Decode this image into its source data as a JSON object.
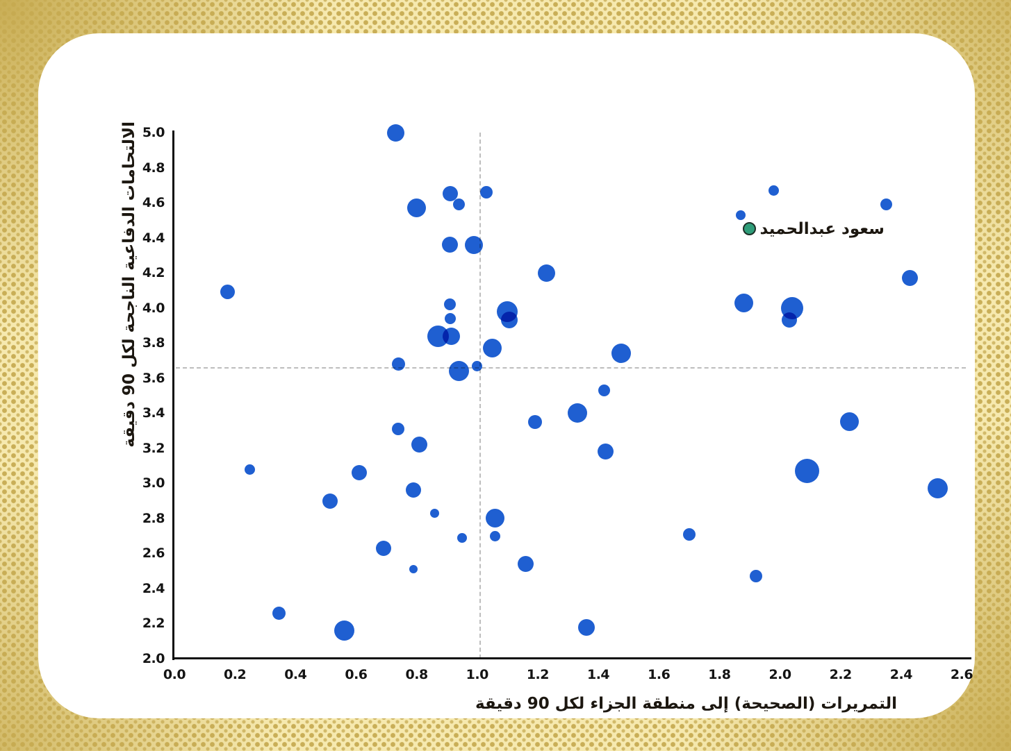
{
  "chart_data": {
    "type": "scatter",
    "title": "",
    "xlabel": "التمريرات (الصحيحة) إلى منطقة الجزاء لكل 90 دقيقة",
    "ylabel": "الالتحامات الدفاعية الناجحة لكل 90 دقيقة",
    "xlim": [
      0.0,
      2.6
    ],
    "ylim": [
      2.0,
      5.0
    ],
    "xticks": [
      0.0,
      0.2,
      0.4,
      0.6,
      0.8,
      1.0,
      1.2,
      1.4,
      1.6,
      1.8,
      2.0,
      2.2,
      2.4,
      2.6
    ],
    "yticks": [
      2.0,
      2.2,
      2.4,
      2.6,
      2.8,
      3.0,
      3.2,
      3.4,
      3.6,
      3.8,
      4.0,
      4.2,
      4.4,
      4.6,
      4.8,
      5.0
    ],
    "grid": "off",
    "reference_lines": {
      "vline_x": 1.01,
      "hline_y": 3.66
    },
    "bubble_color": "#1f5fd1",
    "highlight_color": "#2f9d79",
    "highlight_border_color": "#1d2f27",
    "annotation": {
      "label": "سعود عبدالحميد",
      "x": 1.9,
      "y": 4.45
    },
    "highlight_point": {
      "x": 1.9,
      "y": 4.45,
      "r": 9.5
    },
    "points": [
      {
        "x": 0.73,
        "y": 5.0,
        "r": 12.5
      },
      {
        "x": 0.8,
        "y": 4.57,
        "r": 13.5
      },
      {
        "x": 0.91,
        "y": 4.65,
        "r": 11
      },
      {
        "x": 0.94,
        "y": 4.59,
        "r": 8.5
      },
      {
        "x": 1.03,
        "y": 4.66,
        "r": 9
      },
      {
        "x": 0.91,
        "y": 4.36,
        "r": 11.5
      },
      {
        "x": 0.99,
        "y": 4.36,
        "r": 13
      },
      {
        "x": 0.175,
        "y": 4.09,
        "r": 10.5
      },
      {
        "x": 0.91,
        "y": 4.02,
        "r": 8.5
      },
      {
        "x": 0.91,
        "y": 3.94,
        "r": 8
      },
      {
        "x": 0.87,
        "y": 3.84,
        "r": 15.5
      },
      {
        "x": 0.915,
        "y": 3.84,
        "r": 12.5
      },
      {
        "x": 1.1,
        "y": 3.98,
        "r": 15
      },
      {
        "x": 1.105,
        "y": 3.93,
        "r": 12
      },
      {
        "x": 1.05,
        "y": 3.77,
        "r": 13.5
      },
      {
        "x": 0.94,
        "y": 3.64,
        "r": 14.5
      },
      {
        "x": 1.0,
        "y": 3.67,
        "r": 7.5
      },
      {
        "x": 0.74,
        "y": 3.68,
        "r": 9.5
      },
      {
        "x": 1.23,
        "y": 4.2,
        "r": 12.5
      },
      {
        "x": 1.475,
        "y": 3.74,
        "r": 14
      },
      {
        "x": 1.42,
        "y": 3.53,
        "r": 8.5
      },
      {
        "x": 1.33,
        "y": 3.4,
        "r": 14
      },
      {
        "x": 1.19,
        "y": 3.35,
        "r": 10
      },
      {
        "x": 1.425,
        "y": 3.18,
        "r": 11.5
      },
      {
        "x": 0.74,
        "y": 3.31,
        "r": 9
      },
      {
        "x": 0.81,
        "y": 3.22,
        "r": 11.5
      },
      {
        "x": 0.25,
        "y": 3.08,
        "r": 7.5
      },
      {
        "x": 0.61,
        "y": 3.06,
        "r": 11
      },
      {
        "x": 0.79,
        "y": 2.96,
        "r": 11
      },
      {
        "x": 0.515,
        "y": 2.9,
        "r": 11
      },
      {
        "x": 0.69,
        "y": 2.63,
        "r": 11
      },
      {
        "x": 0.79,
        "y": 2.51,
        "r": 6
      },
      {
        "x": 0.345,
        "y": 2.26,
        "r": 9.5
      },
      {
        "x": 0.56,
        "y": 2.16,
        "r": 14.5
      },
      {
        "x": 0.86,
        "y": 2.83,
        "r": 6.5
      },
      {
        "x": 0.95,
        "y": 2.69,
        "r": 7
      },
      {
        "x": 1.06,
        "y": 2.8,
        "r": 13.5
      },
      {
        "x": 1.06,
        "y": 2.7,
        "r": 7.5
      },
      {
        "x": 1.16,
        "y": 2.54,
        "r": 11.5
      },
      {
        "x": 1.36,
        "y": 2.18,
        "r": 12
      },
      {
        "x": 1.7,
        "y": 2.71,
        "r": 9
      },
      {
        "x": 1.98,
        "y": 4.67,
        "r": 7.5
      },
      {
        "x": 1.87,
        "y": 4.53,
        "r": 7
      },
      {
        "x": 2.35,
        "y": 4.59,
        "r": 8.5
      },
      {
        "x": 2.43,
        "y": 4.17,
        "r": 11.5
      },
      {
        "x": 1.88,
        "y": 4.03,
        "r": 13.5
      },
      {
        "x": 2.04,
        "y": 4.0,
        "r": 16
      },
      {
        "x": 2.03,
        "y": 3.93,
        "r": 11
      },
      {
        "x": 2.23,
        "y": 3.35,
        "r": 13.5
      },
      {
        "x": 2.09,
        "y": 3.07,
        "r": 17.5
      },
      {
        "x": 2.52,
        "y": 2.97,
        "r": 14.5
      },
      {
        "x": 1.92,
        "y": 2.47,
        "r": 9
      }
    ]
  }
}
